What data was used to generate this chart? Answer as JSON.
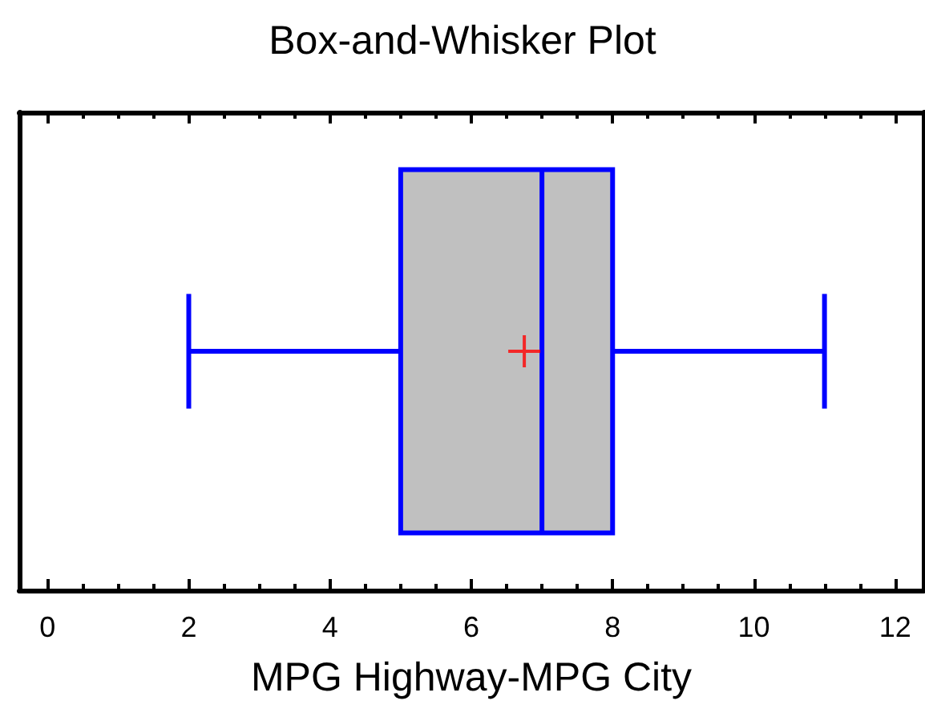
{
  "chart_data": {
    "type": "box",
    "title": "Box-and-Whisker Plot",
    "xlabel": "MPG Highway-MPG City",
    "orientation": "horizontal",
    "categories": [
      null
    ],
    "color": "#0000ff",
    "colors": [
      "#c0c0c0"
    ],
    "marker": "cross",
    "boxes": [
      {
        "low": 2,
        "q1": 5,
        "median": 7,
        "q3": 8,
        "high": 11,
        "mean": 6.75
      }
    ],
    "xlim": [
      -0.4,
      12.4
    ],
    "xticks": [
      0,
      2,
      4,
      6,
      8,
      10,
      12
    ],
    "tick_labels": "x",
    "grid": false
  }
}
